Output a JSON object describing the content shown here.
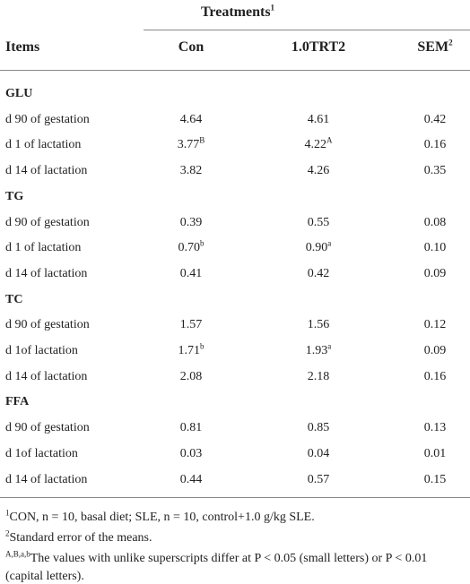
{
  "table": {
    "spanner": {
      "text": "Treatments",
      "sup": "1"
    },
    "columns": [
      {
        "text": "Items"
      },
      {
        "text": "Con"
      },
      {
        "text": "1.0TRT2"
      },
      {
        "text": "SEM",
        "sup": "2"
      }
    ],
    "groups": [
      {
        "name": "GLU",
        "rows": [
          {
            "item": "d 90 of gestation",
            "cells": [
              {
                "value": "4.64"
              },
              {
                "value": "4.61"
              },
              {
                "value": "0.42"
              }
            ]
          },
          {
            "item": "d 1 of lactation",
            "cells": [
              {
                "value": "3.77",
                "sup": "B"
              },
              {
                "value": "4.22",
                "sup": "A"
              },
              {
                "value": "0.16"
              }
            ]
          },
          {
            "item": "d 14 of lactation",
            "cells": [
              {
                "value": "3.82"
              },
              {
                "value": "4.26"
              },
              {
                "value": "0.35"
              }
            ]
          }
        ]
      },
      {
        "name": "TG",
        "rows": [
          {
            "item": "d 90 of gestation",
            "cells": [
              {
                "value": "0.39"
              },
              {
                "value": "0.55"
              },
              {
                "value": "0.08"
              }
            ]
          },
          {
            "item": "d 1 of lactation",
            "cells": [
              {
                "value": "0.70",
                "sup": "b"
              },
              {
                "value": "0.90",
                "sup": "a"
              },
              {
                "value": "0.10"
              }
            ]
          },
          {
            "item": "d 14 of lactation",
            "cells": [
              {
                "value": "0.41"
              },
              {
                "value": "0.42"
              },
              {
                "value": "0.09"
              }
            ]
          }
        ]
      },
      {
        "name": "TC",
        "rows": [
          {
            "item": "d 90 of gestation",
            "cells": [
              {
                "value": "1.57"
              },
              {
                "value": "1.56"
              },
              {
                "value": "0.12"
              }
            ]
          },
          {
            "item": "d 1of lactation",
            "cells": [
              {
                "value": "1.71",
                "sup": "b"
              },
              {
                "value": "1.93",
                "sup": "a"
              },
              {
                "value": "0.09"
              }
            ]
          },
          {
            "item": "d 14 of lactation",
            "cells": [
              {
                "value": "2.08"
              },
              {
                "value": "2.18"
              },
              {
                "value": "0.16"
              }
            ]
          }
        ]
      },
      {
        "name": "FFA",
        "rows": [
          {
            "item": "d 90 of gestation",
            "cells": [
              {
                "value": "0.81"
              },
              {
                "value": "0.85"
              },
              {
                "value": "0.13"
              }
            ]
          },
          {
            "item": "d 1of lactation",
            "cells": [
              {
                "value": "0.03"
              },
              {
                "value": "0.04"
              },
              {
                "value": "0.01"
              }
            ]
          },
          {
            "item": "d 14 of lactation",
            "cells": [
              {
                "value": "0.44"
              },
              {
                "value": "0.57"
              },
              {
                "value": "0.15"
              }
            ]
          }
        ]
      }
    ]
  },
  "footnotes": [
    {
      "sup": "1",
      "text": "CON, n = 10, basal diet; SLE, n = 10, control+1.0 g/kg SLE."
    },
    {
      "sup": "2",
      "text": "Standard error of the means."
    },
    {
      "sup": "A,B,a,b",
      "text": "The values with unlike superscripts differ at P < 0.05 (small letters) or P < 0.01 (capital letters)."
    }
  ]
}
